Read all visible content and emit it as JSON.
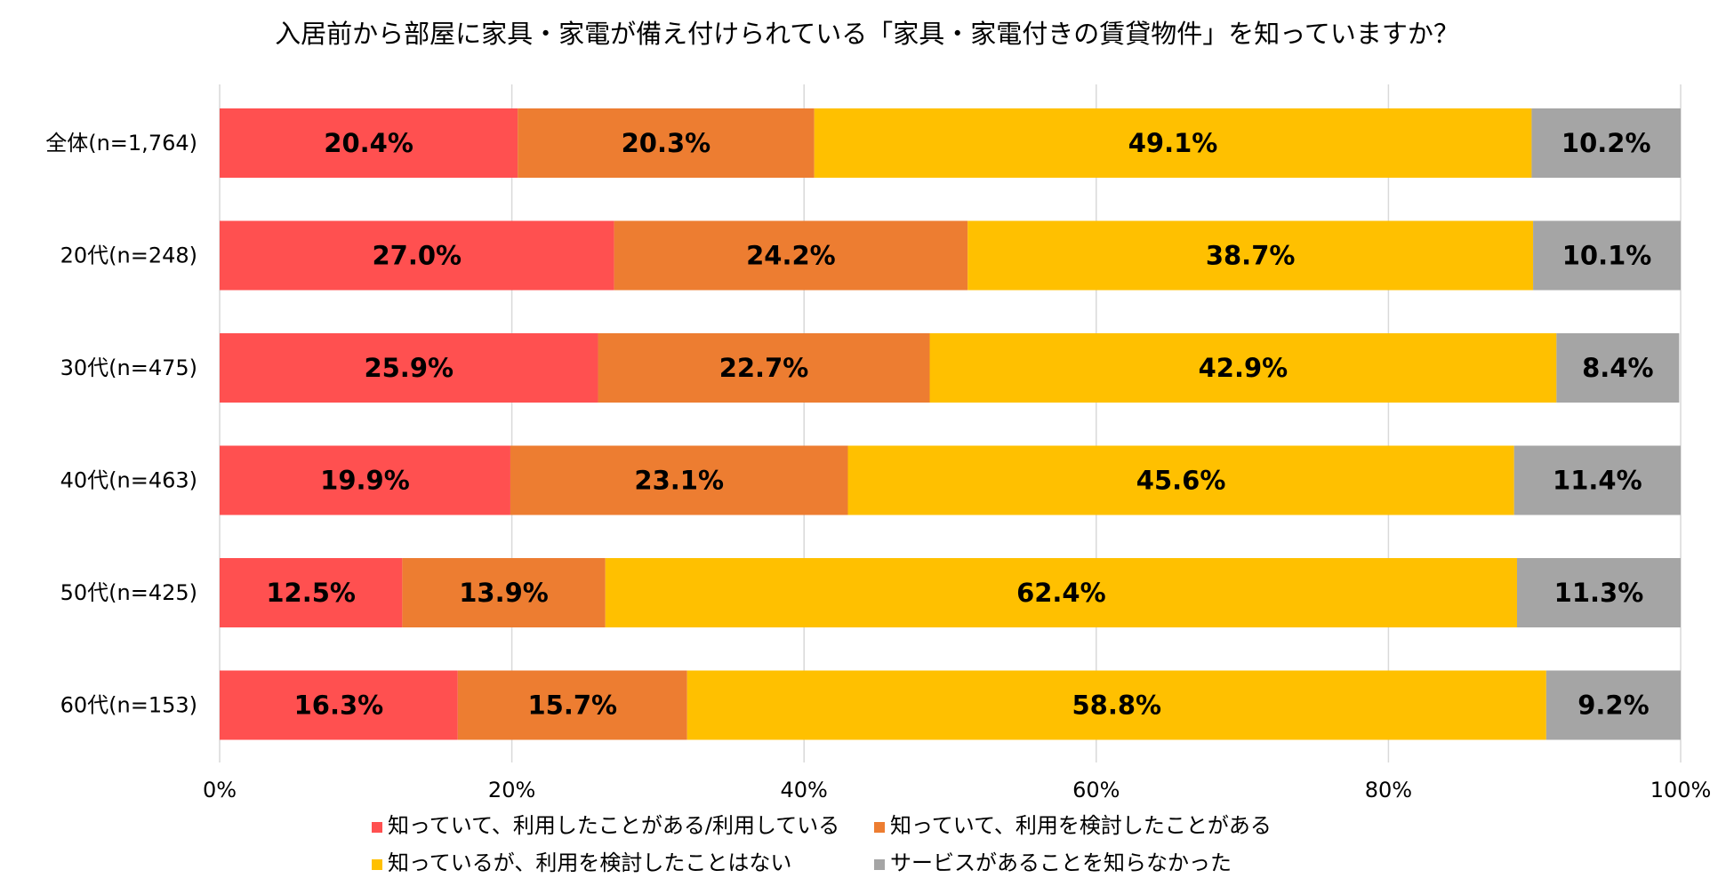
{
  "chart_data": {
    "type": "bar",
    "orientation": "horizontal",
    "stacked": true,
    "title": "入居前から部屋に家具・家電が備え付けられている「家具・家電付きの賃貸物件」を知っていますか？",
    "categories": [
      "全体(n=1,764)",
      "20代(n=248)",
      "30代(n=475)",
      "40代(n=463)",
      "50代(n=425)",
      "60代(n=153)"
    ],
    "series": [
      {
        "name": "知っていて、利用したことがある/利用している",
        "color": "#ff5050",
        "values": [
          20.4,
          27.0,
          25.9,
          19.9,
          12.5,
          16.3
        ]
      },
      {
        "name": "知っていて、利用を検討したことがある",
        "color": "#ed7d31",
        "values": [
          20.3,
          24.2,
          22.7,
          23.1,
          13.9,
          15.7
        ]
      },
      {
        "name": "知っているが、利用を検討したことはない",
        "color": "#ffc000",
        "values": [
          49.1,
          38.7,
          42.9,
          45.6,
          62.4,
          58.8
        ]
      },
      {
        "name": "サービスがあることを知らなかった",
        "color": "#a5a5a5",
        "values": [
          10.2,
          10.1,
          8.4,
          11.4,
          11.3,
          9.2
        ]
      }
    ],
    "data_labels": [
      [
        "20.4%",
        "20.3%",
        "49.1%",
        "10.2%"
      ],
      [
        "27.0%",
        "24.2%",
        "38.7%",
        "10.1%"
      ],
      [
        "25.9%",
        "22.7%",
        "42.9%",
        "8.4%"
      ],
      [
        "19.9%",
        "23.1%",
        "45.6%",
        "11.4%"
      ],
      [
        "12.5%",
        "13.9%",
        "62.4%",
        "11.3%"
      ],
      [
        "16.3%",
        "15.7%",
        "58.8%",
        "9.2%"
      ]
    ],
    "x_ticks": [
      0,
      20,
      40,
      60,
      80,
      100
    ],
    "x_tick_labels": [
      "0%",
      "20%",
      "40%",
      "60%",
      "80%",
      "100%"
    ],
    "xlim": [
      0,
      100
    ],
    "grid": true,
    "legend_position": "bottom"
  }
}
